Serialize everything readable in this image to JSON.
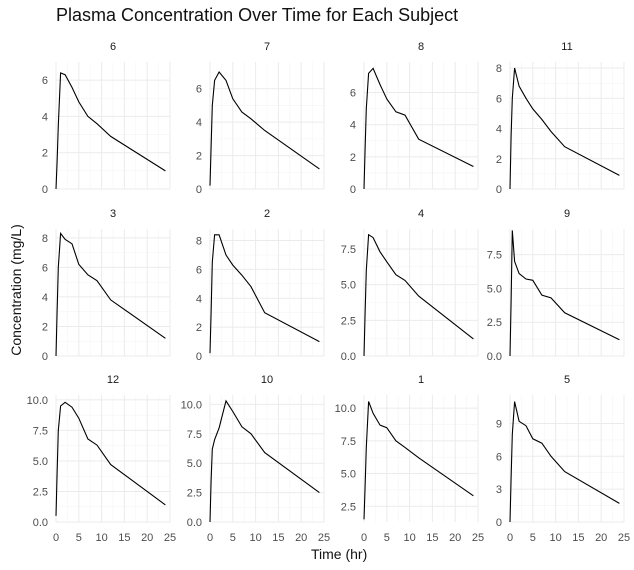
{
  "chart_data": {
    "type": "line",
    "title": "Plasma Concentration Over Time for Each Subject",
    "xlabel": "Time (hr)",
    "ylabel": "Concentration (mg/L)",
    "xlim": [
      0,
      25
    ],
    "x_ticks": [
      0,
      5,
      10,
      15,
      20,
      25
    ],
    "grid": true,
    "facets": [
      {
        "subject": "6",
        "ylim": [
          0,
          7.0
        ],
        "y_ticks": [
          "0",
          "2",
          "4",
          "6"
        ],
        "x": [
          0,
          0.25,
          0.5,
          1,
          2,
          3.5,
          5,
          7,
          9,
          12,
          24
        ],
        "values": [
          0,
          1.5,
          3.5,
          6.4,
          6.3,
          5.6,
          4.8,
          4.0,
          3.6,
          2.9,
          1.0
        ]
      },
      {
        "subject": "7",
        "ylim": [
          0,
          7.6
        ],
        "y_ticks": [
          "0",
          "2",
          "4",
          "6"
        ],
        "x": [
          0,
          0.25,
          0.5,
          1,
          2,
          3.5,
          5,
          7,
          9,
          12,
          24
        ],
        "values": [
          0.2,
          2.5,
          5.0,
          6.5,
          7.0,
          6.5,
          5.4,
          4.6,
          4.2,
          3.5,
          1.2
        ]
      },
      {
        "subject": "8",
        "ylim": [
          0,
          7.9
        ],
        "y_ticks": [
          "0",
          "2",
          "4",
          "6"
        ],
        "x": [
          0,
          0.25,
          0.5,
          1,
          2,
          3.5,
          5,
          7,
          9,
          12,
          24
        ],
        "values": [
          0,
          2.5,
          5.0,
          7.2,
          7.5,
          6.5,
          5.6,
          4.8,
          4.6,
          3.1,
          1.4
        ]
      },
      {
        "subject": "11",
        "ylim": [
          0,
          8.4
        ],
        "y_ticks": [
          "0",
          "2",
          "4",
          "6",
          "8"
        ],
        "x": [
          0,
          0.25,
          0.5,
          1,
          2,
          3.5,
          5,
          7,
          9,
          12,
          24
        ],
        "values": [
          0,
          3.5,
          6.0,
          8.0,
          6.8,
          6.0,
          5.3,
          4.6,
          3.8,
          2.8,
          0.9
        ]
      },
      {
        "subject": "3",
        "ylim": [
          0,
          8.6
        ],
        "y_ticks": [
          "0",
          "2",
          "4",
          "6",
          "8"
        ],
        "x": [
          0,
          0.25,
          0.5,
          1,
          2,
          3.5,
          5,
          7,
          9,
          12,
          24
        ],
        "values": [
          0,
          3.0,
          6.0,
          8.3,
          7.9,
          7.6,
          6.2,
          5.5,
          5.1,
          3.8,
          1.2
        ]
      },
      {
        "subject": "2",
        "ylim": [
          0,
          8.8
        ],
        "y_ticks": [
          "0",
          "2",
          "4",
          "6",
          "8"
        ],
        "x": [
          0,
          0.25,
          0.5,
          1,
          2,
          3.5,
          5,
          7,
          9,
          12,
          24
        ],
        "values": [
          0.2,
          3.0,
          6.5,
          8.4,
          8.4,
          7.0,
          6.3,
          5.6,
          4.8,
          3.0,
          1.0
        ]
      },
      {
        "subject": "4",
        "ylim": [
          0,
          8.9
        ],
        "y_ticks": [
          "0.0",
          "2.5",
          "5.0",
          "7.5"
        ],
        "x": [
          0,
          0.25,
          0.5,
          1,
          2,
          3.5,
          5,
          7,
          9,
          12,
          24
        ],
        "values": [
          0,
          3.0,
          6.0,
          8.5,
          8.3,
          7.3,
          6.6,
          5.7,
          5.3,
          4.2,
          1.2
        ]
      },
      {
        "subject": "9",
        "ylim": [
          0,
          9.4
        ],
        "y_ticks": [
          "0.0",
          "2.5",
          "5.0",
          "7.5"
        ],
        "x": [
          0,
          0.25,
          0.5,
          1,
          2,
          3.5,
          5,
          7,
          9,
          12,
          24
        ],
        "values": [
          0,
          4.0,
          9.3,
          7.0,
          6.1,
          5.7,
          5.6,
          4.5,
          4.3,
          3.2,
          1.2
        ]
      },
      {
        "subject": "12",
        "ylim": [
          0,
          10.4
        ],
        "y_ticks": [
          "0.0",
          "2.5",
          "5.0",
          "7.5",
          "10.0"
        ],
        "x": [
          0,
          0.25,
          0.5,
          1,
          2,
          3.5,
          5,
          7,
          9,
          12,
          24
        ],
        "values": [
          0.5,
          4.0,
          7.5,
          9.5,
          9.8,
          9.4,
          8.5,
          6.8,
          6.3,
          4.7,
          1.4
        ]
      },
      {
        "subject": "10",
        "ylim": [
          0,
          10.8
        ],
        "y_ticks": [
          "0.0",
          "2.5",
          "5.0",
          "7.5",
          "10.0"
        ],
        "x": [
          0,
          0.25,
          0.5,
          1,
          2,
          3.5,
          5,
          7,
          9,
          12,
          24
        ],
        "values": [
          0,
          3.5,
          6.2,
          7.0,
          8.0,
          10.3,
          9.4,
          8.1,
          7.5,
          5.9,
          2.5
        ]
      },
      {
        "subject": "1",
        "ylim": [
          1.3,
          11.0
        ],
        "y_ticks": [
          "2.5",
          "5.0",
          "7.5",
          "10.0"
        ],
        "x": [
          0,
          0.25,
          0.5,
          1,
          2,
          3.5,
          5,
          7,
          9,
          12,
          24
        ],
        "values": [
          1.5,
          4.0,
          7.0,
          10.5,
          9.6,
          8.7,
          8.5,
          7.5,
          7.0,
          6.2,
          3.3
        ]
      },
      {
        "subject": "5",
        "ylim": [
          0,
          11.6
        ],
        "y_ticks": [
          "0",
          "3",
          "6",
          "9"
        ],
        "x": [
          0,
          0.25,
          0.5,
          1,
          2,
          3.5,
          5,
          7,
          9,
          12,
          24
        ],
        "values": [
          0,
          4.0,
          8.0,
          11.0,
          9.2,
          8.8,
          7.6,
          7.2,
          6.0,
          4.6,
          1.7
        ]
      }
    ]
  }
}
